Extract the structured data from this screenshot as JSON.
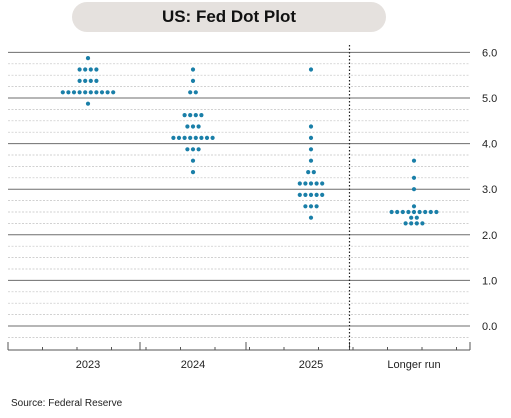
{
  "header": {
    "title": "US: Fed Dot Plot"
  },
  "footer": {
    "source": "Source:  Federal Reserve"
  },
  "colors": {
    "dot": "#1a7fa8",
    "major_grid": "#6e6e6e",
    "minor_grid": "#c2c2c2",
    "title_bg": "#e5e1de"
  },
  "chart_data": {
    "type": "scatter",
    "title": "US: Fed Dot Plot",
    "xlabel": "",
    "ylabel": "",
    "categories": [
      "2023",
      "2024",
      "2025",
      "Longer run"
    ],
    "ylim": [
      -0.5,
      6.125
    ],
    "y_ticks": [
      "6.0",
      "5.0",
      "4.0",
      "3.0",
      "2.0",
      "1.0",
      "0.0"
    ],
    "y_tick_values": [
      6,
      5,
      4,
      3,
      2,
      1,
      0
    ],
    "grid": true,
    "y_axis_side": "right",
    "divider_before": "Longer run",
    "points": [
      {
        "year": "2023",
        "rate": 5.875,
        "count": 1
      },
      {
        "year": "2023",
        "rate": 5.625,
        "count": 4
      },
      {
        "year": "2023",
        "rate": 5.375,
        "count": 4
      },
      {
        "year": "2023",
        "rate": 5.125,
        "count": 10
      },
      {
        "year": "2023",
        "rate": 4.875,
        "count": 1
      },
      {
        "year": "2024",
        "rate": 5.625,
        "count": 1
      },
      {
        "year": "2024",
        "rate": 5.375,
        "count": 1
      },
      {
        "year": "2024",
        "rate": 5.125,
        "count": 2
      },
      {
        "year": "2024",
        "rate": 4.625,
        "count": 4
      },
      {
        "year": "2024",
        "rate": 4.375,
        "count": 3
      },
      {
        "year": "2024",
        "rate": 4.125,
        "count": 8
      },
      {
        "year": "2024",
        "rate": 3.875,
        "count": 3
      },
      {
        "year": "2024",
        "rate": 3.625,
        "count": 1
      },
      {
        "year": "2024",
        "rate": 3.375,
        "count": 1
      },
      {
        "year": "2025",
        "rate": 5.625,
        "count": 1
      },
      {
        "year": "2025",
        "rate": 4.375,
        "count": 1
      },
      {
        "year": "2025",
        "rate": 4.125,
        "count": 1
      },
      {
        "year": "2025",
        "rate": 3.875,
        "count": 1
      },
      {
        "year": "2025",
        "rate": 3.625,
        "count": 1
      },
      {
        "year": "2025",
        "rate": 3.375,
        "count": 2
      },
      {
        "year": "2025",
        "rate": 3.125,
        "count": 5
      },
      {
        "year": "2025",
        "rate": 2.875,
        "count": 5
      },
      {
        "year": "2025",
        "rate": 2.625,
        "count": 3
      },
      {
        "year": "2025",
        "rate": 2.375,
        "count": 1
      },
      {
        "year": "Longer run",
        "rate": 3.625,
        "count": 1
      },
      {
        "year": "Longer run",
        "rate": 3.25,
        "count": 1
      },
      {
        "year": "Longer run",
        "rate": 3.0,
        "count": 1
      },
      {
        "year": "Longer run",
        "rate": 2.625,
        "count": 1
      },
      {
        "year": "Longer run",
        "rate": 2.5,
        "count": 9
      },
      {
        "year": "Longer run",
        "rate": 2.375,
        "count": 2
      },
      {
        "year": "Longer run",
        "rate": 2.25,
        "count": 4
      }
    ]
  }
}
